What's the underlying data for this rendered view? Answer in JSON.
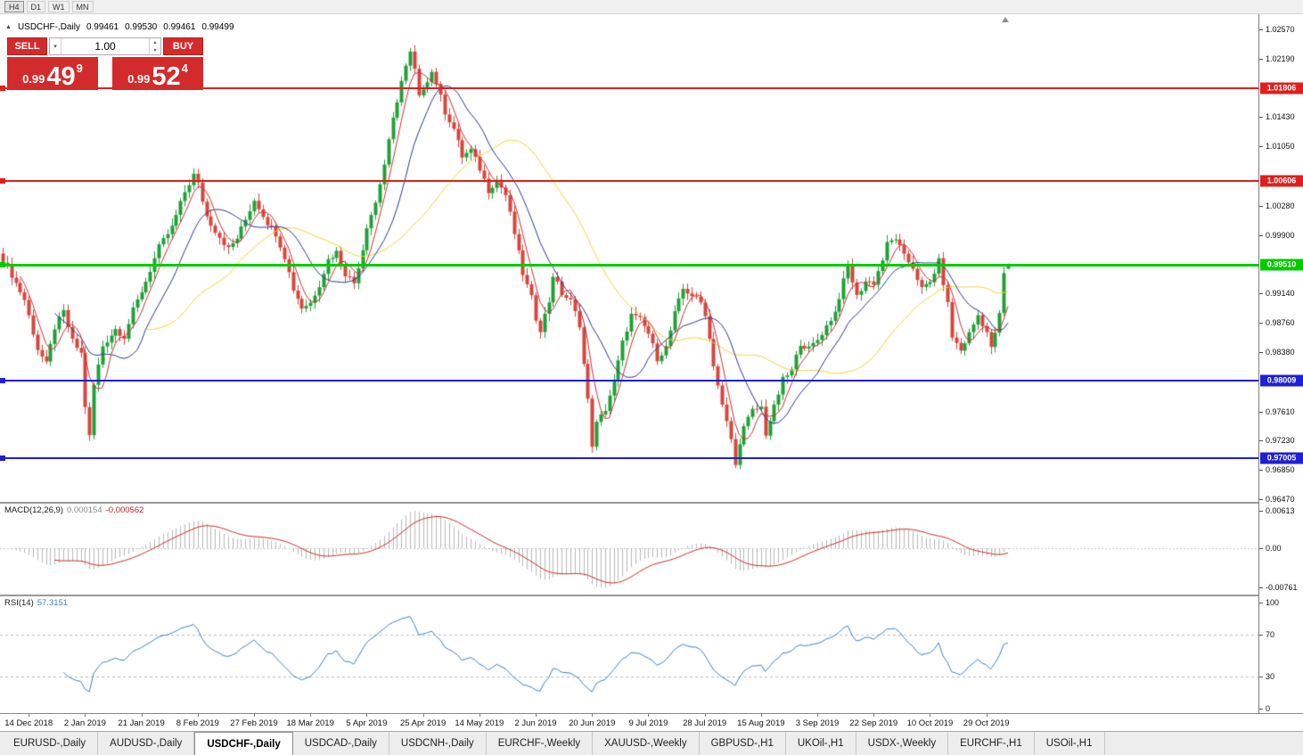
{
  "colors": {
    "bull": "#21a038",
    "bear": "#d8453c",
    "ma_fast": "#cc2f2f",
    "ma_mid": "#2d3593",
    "ma_slow": "#efd53a",
    "macd_hist": "#b8b8b8",
    "macd_signal": "#cc2a2a",
    "rsi_line": "#3f7fc1",
    "panel_red": "#d32b2b"
  },
  "toolbar": {
    "timeframes": [
      {
        "label": "H4",
        "active": true
      },
      {
        "label": "D1",
        "active": false
      },
      {
        "label": "W1",
        "active": false
      },
      {
        "label": "MN",
        "active": false
      }
    ]
  },
  "chart": {
    "title": "USDCHF-,Daily",
    "ohlc": {
      "open": "0.99461",
      "high": "0.99530",
      "low": "0.99461",
      "close": "0.99499"
    },
    "one_click": {
      "sell_label": "SELL",
      "buy_label": "BUY",
      "volume": "1.00",
      "sell_price": {
        "prefix": "0.99",
        "big": "49",
        "pip": "9"
      },
      "buy_price": {
        "prefix": "0.99",
        "big": "52",
        "pip": "4"
      }
    }
  },
  "macd": {
    "name": "MACD(12,26,9)",
    "value_main": "0.000154",
    "value_signal": "-0.000562",
    "axis_top": "0.00613",
    "axis_zero": "0.00",
    "axis_bottom": "-0.00761"
  },
  "rsi": {
    "name": "RSI(14)",
    "value": "57.3151",
    "axis": [
      100,
      70,
      30,
      0
    ]
  },
  "tabs": {
    "active_index": 2,
    "items": [
      "EURUSD-,Daily",
      "AUDUSD-,Daily",
      "USDCHF-,Daily",
      "USDCAD-,Daily",
      "USDCNH-,Daily",
      "EURCHF-,Weekly",
      "XAUUSD-,Weekly",
      "GBPUSD-,H1",
      "UKOil-,H1",
      "USDX-,Weekly",
      "EURCHF-,H1",
      "USOil-,H1"
    ]
  },
  "chart_data": {
    "type": "candlestick",
    "symbol": "USDCHF",
    "timeframe": "Daily",
    "y_range": [
      0.9647,
      1.0257
    ],
    "candle_count": 233,
    "last_ohlc": {
      "open": 0.99461,
      "high": 0.9953,
      "low": 0.99461,
      "close": 0.99499
    },
    "y_ticks": [
      "1.02570",
      "1.02190",
      "1.01430",
      "1.01050",
      "1.00280",
      "0.99900",
      "0.99140",
      "0.98760",
      "0.98380",
      "0.97610",
      "0.97230",
      "0.96850",
      "0.96470"
    ],
    "x_labels": [
      "14 Dec 2018",
      "2 Jan 2019",
      "21 Jan 2019",
      "8 Feb 2019",
      "27 Feb 2019",
      "18 Mar 2019",
      "5 Apr 2019",
      "25 Apr 2019",
      "14 May 2019",
      "2 Jun 2019",
      "20 Jun 2019",
      "9 Jul 2019",
      "28 Jul 2019",
      "15 Aug 2019",
      "3 Sep 2019",
      "22 Sep 2019",
      "10 Oct 2019",
      "29 Oct 2019"
    ],
    "horizontal_lines": [
      {
        "price": 1.01806,
        "label": "1.01806",
        "color": "#e01f1f",
        "width": 2
      },
      {
        "price": 1.00606,
        "label": "1.00606",
        "color": "#e01f1f",
        "width": 2
      },
      {
        "price": 0.9951,
        "label": "0.99510",
        "color": "#00cc00",
        "width": 3
      },
      {
        "price": 0.98009,
        "label": "0.98009",
        "color": "#1f1fd8",
        "width": 2
      },
      {
        "price": 0.97005,
        "label": "0.97005",
        "color": "#1f1fd8",
        "width": 2
      }
    ],
    "moving_averages": [
      {
        "period": 5,
        "color_key": "ma_fast"
      },
      {
        "period": 13,
        "color_key": "ma_mid"
      },
      {
        "period": 34,
        "color_key": "ma_slow"
      }
    ],
    "indicators": [
      {
        "name": "MACD",
        "params": [
          12,
          26,
          9
        ],
        "current": [
          0.000154,
          -0.000562
        ],
        "axis": [
          0.00613,
          0,
          -0.00761
        ]
      },
      {
        "name": "RSI",
        "params": [
          14
        ],
        "current": 57.3151,
        "axis": [
          100,
          70,
          30,
          0
        ]
      }
    ],
    "close_path": [
      [
        0,
        0.9958
      ],
      [
        2,
        0.9938
      ],
      [
        5,
        0.9906
      ],
      [
        8,
        0.9842
      ],
      [
        10,
        0.9822
      ],
      [
        12,
        0.987
      ],
      [
        14,
        0.989
      ],
      [
        16,
        0.9852
      ],
      [
        18,
        0.9836
      ],
      [
        19,
        0.9768
      ],
      [
        20,
        0.9728
      ],
      [
        21,
        0.9795
      ],
      [
        23,
        0.9846
      ],
      [
        26,
        0.9868
      ],
      [
        28,
        0.9858
      ],
      [
        30,
        0.9892
      ],
      [
        33,
        0.993
      ],
      [
        36,
        0.9974
      ],
      [
        39,
        1.0
      ],
      [
        42,
        1.0046
      ],
      [
        44,
        1.0068
      ],
      [
        45,
        1.0056
      ],
      [
        47,
        1.0014
      ],
      [
        49,
        0.9996
      ],
      [
        52,
        0.9972
      ],
      [
        54,
        0.9986
      ],
      [
        56,
        1.001
      ],
      [
        58,
        1.0036
      ],
      [
        61,
        1.0006
      ],
      [
        63,
        0.9992
      ],
      [
        65,
        0.9962
      ],
      [
        67,
        0.992
      ],
      [
        69,
        0.9896
      ],
      [
        71,
        0.9902
      ],
      [
        73,
        0.9926
      ],
      [
        75,
        0.9958
      ],
      [
        77,
        0.9968
      ],
      [
        79,
        0.994
      ],
      [
        81,
        0.9928
      ],
      [
        83,
        0.9972
      ],
      [
        84,
        1.0002
      ],
      [
        86,
        1.0032
      ],
      [
        88,
        1.0082
      ],
      [
        90,
        1.014
      ],
      [
        92,
        1.019
      ],
      [
        94,
        1.0226
      ],
      [
        95,
        1.0204
      ],
      [
        96,
        1.0168
      ],
      [
        97,
        1.0182
      ],
      [
        99,
        1.0202
      ],
      [
        100,
        1.0188
      ],
      [
        102,
        1.015
      ],
      [
        104,
        1.0128
      ],
      [
        106,
        1.0092
      ],
      [
        108,
        1.01
      ],
      [
        110,
        1.0076
      ],
      [
        112,
        1.0048
      ],
      [
        114,
        1.0062
      ],
      [
        116,
        1.0042
      ],
      [
        118,
        0.9992
      ],
      [
        120,
        0.994
      ],
      [
        122,
        0.9908
      ],
      [
        123,
        0.9882
      ],
      [
        124,
        0.9868
      ],
      [
        126,
        0.9904
      ],
      [
        127,
        0.9938
      ],
      [
        129,
        0.9914
      ],
      [
        131,
        0.9904
      ],
      [
        133,
        0.9874
      ],
      [
        134,
        0.9822
      ],
      [
        135,
        0.9775
      ],
      [
        136,
        0.9718
      ],
      [
        137,
        0.9745
      ],
      [
        139,
        0.9764
      ],
      [
        141,
        0.98
      ],
      [
        143,
        0.985
      ],
      [
        145,
        0.9886
      ],
      [
        147,
        0.988
      ],
      [
        149,
        0.9862
      ],
      [
        151,
        0.983
      ],
      [
        153,
        0.9844
      ],
      [
        155,
        0.9888
      ],
      [
        157,
        0.992
      ],
      [
        159,
        0.9912
      ],
      [
        161,
        0.9902
      ],
      [
        162,
        0.9888
      ],
      [
        164,
        0.9822
      ],
      [
        166,
        0.9768
      ],
      [
        168,
        0.9725
      ],
      [
        169,
        0.969
      ],
      [
        170,
        0.9722
      ],
      [
        171,
        0.974
      ],
      [
        173,
        0.9762
      ],
      [
        175,
        0.9766
      ],
      [
        176,
        0.9732
      ],
      [
        178,
        0.9766
      ],
      [
        180,
        0.9802
      ],
      [
        182,
        0.9814
      ],
      [
        184,
        0.985
      ],
      [
        186,
        0.9842
      ],
      [
        188,
        0.9854
      ],
      [
        190,
        0.9872
      ],
      [
        192,
        0.989
      ],
      [
        194,
        0.993
      ],
      [
        195,
        0.995
      ],
      [
        197,
        0.991
      ],
      [
        199,
        0.993
      ],
      [
        201,
        0.9928
      ],
      [
        203,
        0.9958
      ],
      [
        204,
        0.9978
      ],
      [
        206,
        0.9986
      ],
      [
        208,
        0.9962
      ],
      [
        210,
        0.9948
      ],
      [
        212,
        0.992
      ],
      [
        214,
        0.9928
      ],
      [
        216,
        0.9956
      ],
      [
        218,
        0.99
      ],
      [
        219,
        0.9858
      ],
      [
        221,
        0.984
      ],
      [
        223,
        0.9862
      ],
      [
        225,
        0.9886
      ],
      [
        227,
        0.9864
      ],
      [
        228,
        0.9842
      ],
      [
        230,
        0.9886
      ],
      [
        231,
        0.994
      ],
      [
        232,
        0.99499
      ]
    ]
  }
}
